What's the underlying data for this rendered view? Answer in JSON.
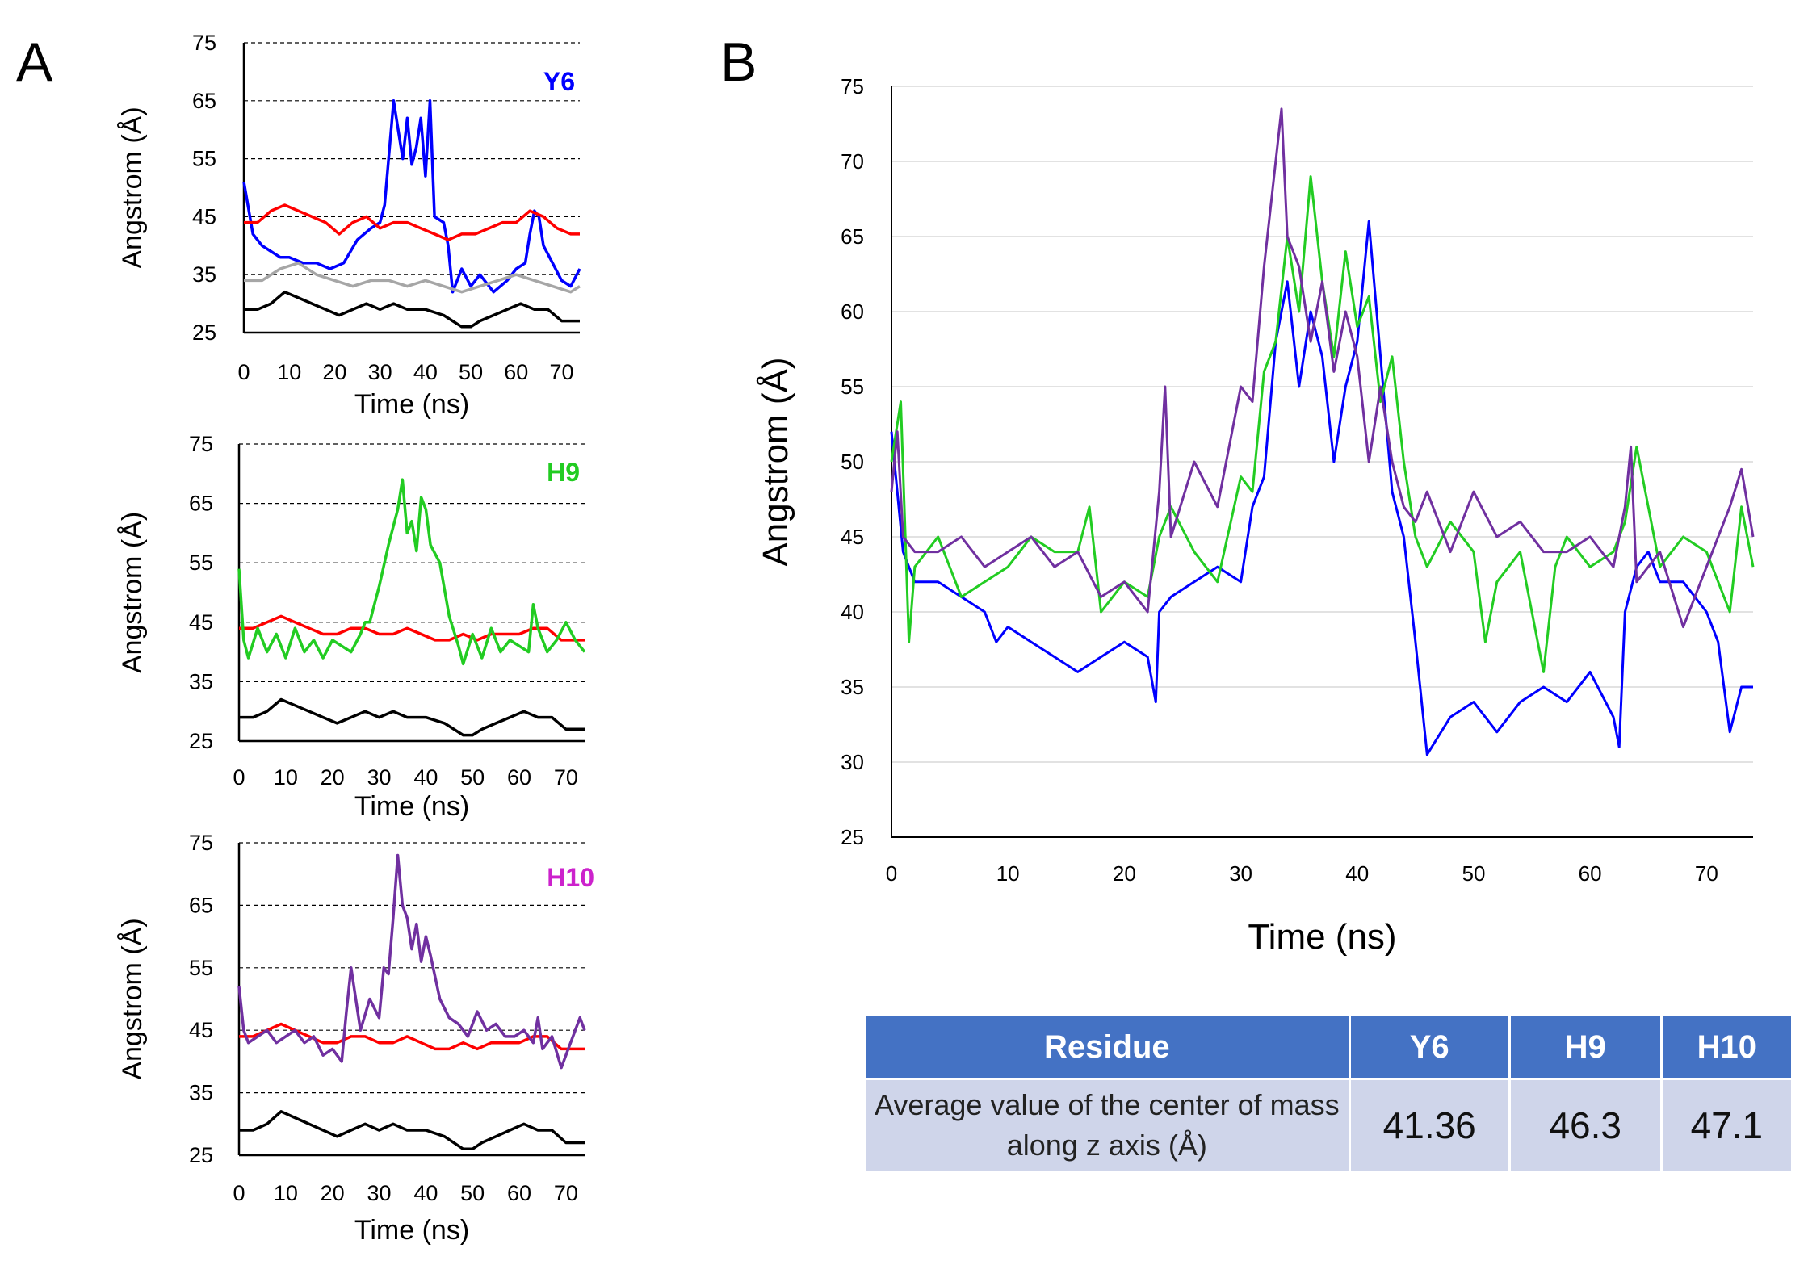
{
  "panels": {
    "a": "A",
    "b": "B"
  },
  "colors": {
    "Y6": "#0000ff",
    "H9": "#22cc22",
    "H10": "#7030a0",
    "red": "#ff0000",
    "grey": "#a6a6a6",
    "black": "#000000",
    "tag_H10": "#cc22cc",
    "header": "#4472c4",
    "cell": "#cfd5ea"
  },
  "chart_data": [
    {
      "id": "A1",
      "type": "line",
      "tag": "Y6",
      "xlabel": "Time (ns)",
      "ylabel": "Angstrom (Å)",
      "xlim": [
        0,
        74
      ],
      "ylim": [
        25,
        75
      ],
      "xticks": [
        0,
        10,
        20,
        30,
        40,
        50,
        60,
        70
      ],
      "yticks": [
        25,
        35,
        45,
        55,
        65,
        75
      ],
      "series": [
        {
          "name": "Y6",
          "color": "#0000ff",
          "x": [
            0,
            2,
            4,
            6,
            8,
            10,
            13,
            16,
            19,
            22,
            25,
            28,
            30,
            31,
            32,
            33,
            34,
            35,
            36,
            37,
            38,
            39,
            40,
            41,
            42,
            44,
            45,
            46,
            48,
            50,
            52,
            55,
            58,
            60,
            62,
            63,
            64,
            65,
            66,
            68,
            70,
            72,
            74
          ],
          "y": [
            51,
            42,
            40,
            39,
            38,
            38,
            37,
            37,
            36,
            37,
            41,
            43,
            44,
            47,
            56,
            65,
            60,
            55,
            62,
            54,
            57,
            62,
            52,
            65,
            45,
            44,
            40,
            32,
            36,
            33,
            35,
            32,
            34,
            36,
            37,
            42,
            46,
            45,
            40,
            37,
            34,
            33,
            36
          ]
        },
        {
          "name": "red",
          "color": "#ff0000",
          "x": [
            0,
            3,
            6,
            9,
            12,
            15,
            18,
            21,
            24,
            27,
            30,
            33,
            36,
            39,
            42,
            45,
            48,
            51,
            54,
            57,
            60,
            63,
            66,
            69,
            72,
            74
          ],
          "y": [
            44,
            44,
            46,
            47,
            46,
            45,
            44,
            42,
            44,
            45,
            43,
            44,
            44,
            43,
            42,
            41,
            42,
            42,
            43,
            44,
            44,
            46,
            45,
            43,
            42,
            42
          ]
        },
        {
          "name": "grey",
          "color": "#a6a6a6",
          "x": [
            0,
            4,
            8,
            12,
            16,
            20,
            24,
            28,
            32,
            36,
            40,
            44,
            48,
            52,
            56,
            60,
            64,
            68,
            72,
            74
          ],
          "y": [
            34,
            34,
            36,
            37,
            35,
            34,
            33,
            34,
            34,
            33,
            34,
            33,
            32,
            33,
            34,
            35,
            34,
            33,
            32,
            33
          ]
        },
        {
          "name": "black",
          "color": "#000000",
          "x": [
            0,
            3,
            6,
            9,
            12,
            15,
            18,
            21,
            24,
            27,
            30,
            33,
            36,
            40,
            44,
            48,
            50,
            52,
            55,
            58,
            61,
            64,
            67,
            70,
            72,
            74
          ],
          "y": [
            29,
            29,
            30,
            32,
            31,
            30,
            29,
            28,
            29,
            30,
            29,
            30,
            29,
            29,
            28,
            26,
            26,
            27,
            28,
            29,
            30,
            29,
            29,
            27,
            27,
            27
          ]
        }
      ]
    },
    {
      "id": "A2",
      "type": "line",
      "tag": "H9",
      "xlabel": "Time (ns)",
      "ylabel": "Angstrom (Å)",
      "xlim": [
        0,
        74
      ],
      "ylim": [
        25,
        75
      ],
      "xticks": [
        0,
        10,
        20,
        30,
        40,
        50,
        60,
        70
      ],
      "yticks": [
        25,
        35,
        45,
        55,
        65,
        75
      ],
      "series": [
        {
          "name": "red",
          "color": "#ff0000",
          "x": [
            0,
            3,
            6,
            9,
            12,
            15,
            18,
            21,
            24,
            27,
            30,
            33,
            36,
            39,
            42,
            45,
            48,
            51,
            54,
            57,
            60,
            63,
            66,
            69,
            72,
            74
          ],
          "y": [
            44,
            44,
            45,
            46,
            45,
            44,
            43,
            43,
            44,
            44,
            43,
            43,
            44,
            43,
            42,
            42,
            43,
            42,
            43,
            43,
            43,
            44,
            44,
            42,
            42,
            42
          ]
        },
        {
          "name": "H9",
          "color": "#22cc22",
          "x": [
            0,
            1,
            2,
            4,
            6,
            8,
            10,
            12,
            14,
            16,
            18,
            20,
            22,
            24,
            26,
            27,
            28,
            30,
            32,
            34,
            35,
            36,
            37,
            38,
            39,
            40,
            41,
            43,
            45,
            47,
            48,
            50,
            52,
            54,
            56,
            58,
            60,
            62,
            63,
            64,
            66,
            68,
            70,
            72,
            74
          ],
          "y": [
            54,
            42,
            39,
            44,
            40,
            43,
            39,
            44,
            40,
            42,
            39,
            42,
            41,
            40,
            43,
            45,
            45,
            51,
            58,
            64,
            69,
            60,
            62,
            57,
            66,
            64,
            58,
            55,
            46,
            41,
            38,
            43,
            39,
            44,
            40,
            42,
            41,
            40,
            48,
            44,
            40,
            42,
            45,
            42,
            40
          ]
        },
        {
          "name": "black",
          "color": "#000000",
          "x": [
            0,
            3,
            6,
            9,
            12,
            15,
            18,
            21,
            24,
            27,
            30,
            33,
            36,
            40,
            44,
            48,
            50,
            52,
            55,
            58,
            61,
            64,
            67,
            70,
            72,
            74
          ],
          "y": [
            29,
            29,
            30,
            32,
            31,
            30,
            29,
            28,
            29,
            30,
            29,
            30,
            29,
            29,
            28,
            26,
            26,
            27,
            28,
            29,
            30,
            29,
            29,
            27,
            27,
            27
          ]
        }
      ]
    },
    {
      "id": "A3",
      "type": "line",
      "tag": "H10",
      "xlabel": "Time (ns)",
      "ylabel": "Angstrom (Å)",
      "xlim": [
        0,
        74
      ],
      "ylim": [
        25,
        75
      ],
      "xticks": [
        0,
        10,
        20,
        30,
        40,
        50,
        60,
        70
      ],
      "yticks": [
        25,
        35,
        45,
        55,
        65,
        75
      ],
      "series": [
        {
          "name": "red",
          "color": "#ff0000",
          "x": [
            0,
            3,
            6,
            9,
            12,
            15,
            18,
            21,
            24,
            27,
            30,
            33,
            36,
            39,
            42,
            45,
            48,
            51,
            54,
            57,
            60,
            63,
            66,
            69,
            72,
            74
          ],
          "y": [
            44,
            44,
            45,
            46,
            45,
            44,
            43,
            43,
            44,
            44,
            43,
            43,
            44,
            43,
            42,
            42,
            43,
            42,
            43,
            43,
            43,
            44,
            44,
            42,
            42,
            42
          ]
        },
        {
          "name": "H10",
          "color": "#7030a0",
          "x": [
            0,
            1,
            2,
            4,
            6,
            8,
            10,
            12,
            14,
            16,
            18,
            20,
            22,
            23,
            24,
            26,
            28,
            30,
            31,
            32,
            33,
            34,
            35,
            36,
            37,
            38,
            39,
            40,
            41,
            43,
            45,
            47,
            49,
            51,
            53,
            55,
            57,
            59,
            61,
            63,
            64,
            65,
            67,
            69,
            71,
            73,
            74
          ],
          "y": [
            52,
            45,
            43,
            44,
            45,
            43,
            44,
            45,
            43,
            44,
            41,
            42,
            40,
            48,
            55,
            45,
            50,
            47,
            55,
            54,
            63,
            73,
            65,
            63,
            58,
            62,
            56,
            60,
            57,
            50,
            47,
            46,
            44,
            48,
            45,
            46,
            44,
            44,
            45,
            43,
            47,
            42,
            44,
            39,
            43,
            47,
            45
          ]
        },
        {
          "name": "black",
          "color": "#000000",
          "x": [
            0,
            3,
            6,
            9,
            12,
            15,
            18,
            21,
            24,
            27,
            30,
            33,
            36,
            40,
            44,
            48,
            50,
            52,
            55,
            58,
            61,
            64,
            67,
            70,
            72,
            74
          ],
          "y": [
            29,
            29,
            30,
            32,
            31,
            30,
            29,
            28,
            29,
            30,
            29,
            30,
            29,
            29,
            28,
            26,
            26,
            27,
            28,
            29,
            30,
            29,
            29,
            27,
            27,
            27
          ]
        }
      ]
    },
    {
      "id": "B",
      "type": "line",
      "xlabel": "Time (ns)",
      "ylabel": "Angstrom (Å)",
      "xlim": [
        0,
        74
      ],
      "ylim": [
        25,
        75
      ],
      "xticks": [
        0,
        10,
        20,
        30,
        40,
        50,
        60,
        70
      ],
      "yticks": [
        25,
        30,
        35,
        40,
        45,
        50,
        55,
        60,
        65,
        70,
        75
      ],
      "series": [
        {
          "name": "Y6",
          "color": "#0000ff",
          "x": [
            0,
            1,
            2,
            4,
            6,
            8,
            9,
            10,
            12,
            14,
            16,
            18,
            20,
            22,
            22.7,
            23,
            24,
            26,
            28,
            30,
            31,
            32,
            33,
            34,
            35,
            36,
            37,
            38,
            39,
            40,
            41,
            42,
            43,
            44,
            45,
            46,
            48,
            50,
            52,
            54,
            56,
            58,
            60,
            62,
            62.5,
            63,
            64,
            65,
            66,
            68,
            70,
            71,
            72,
            73,
            74
          ],
          "y": [
            52,
            44,
            42,
            42,
            41,
            40,
            38,
            39,
            38,
            37,
            36,
            37,
            38,
            37,
            34,
            40,
            41,
            42,
            43,
            42,
            47,
            49,
            58,
            62,
            55,
            60,
            57,
            50,
            55,
            58,
            66,
            57,
            48,
            45,
            38,
            30.5,
            33,
            34,
            32,
            34,
            35,
            34,
            36,
            33,
            31,
            40,
            43,
            44,
            42,
            42,
            40,
            38,
            32,
            35,
            35
          ]
        },
        {
          "name": "H9",
          "color": "#22cc22",
          "x": [
            0,
            0.8,
            1.5,
            2,
            4,
            6,
            8,
            10,
            12,
            14,
            16,
            17,
            18,
            20,
            22,
            23,
            24,
            26,
            28,
            30,
            31,
            32,
            33,
            34,
            35,
            36,
            37,
            38,
            39,
            40,
            41,
            42,
            43,
            44,
            45,
            46,
            48,
            50,
            51,
            52,
            54,
            56,
            57,
            58,
            60,
            62,
            63,
            64,
            66,
            68,
            70,
            72,
            73,
            74
          ],
          "y": [
            50,
            54,
            38,
            43,
            45,
            41,
            42,
            43,
            45,
            44,
            44,
            47,
            40,
            42,
            41,
            45,
            47,
            44,
            42,
            49,
            48,
            56,
            58,
            65,
            60,
            69,
            62,
            57,
            64,
            59,
            61,
            54,
            57,
            50,
            45,
            43,
            46,
            44,
            38,
            42,
            44,
            36,
            43,
            45,
            43,
            44,
            46,
            51,
            43,
            45,
            44,
            40,
            47,
            43
          ]
        },
        {
          "name": "H10",
          "color": "#7030a0",
          "x": [
            0,
            0.5,
            1,
            2,
            4,
            6,
            8,
            10,
            12,
            14,
            16,
            18,
            20,
            22,
            23,
            23.5,
            24,
            26,
            28,
            30,
            31,
            32,
            33,
            33.5,
            34,
            35,
            36,
            37,
            38,
            39,
            40,
            41,
            42,
            43,
            44,
            45,
            46,
            48,
            50,
            52,
            54,
            56,
            58,
            60,
            62,
            63,
            63.5,
            64,
            66,
            68,
            70,
            72,
            73,
            74
          ],
          "y": [
            48,
            52,
            45,
            44,
            44,
            45,
            43,
            44,
            45,
            43,
            44,
            41,
            42,
            40,
            48,
            55,
            45,
            50,
            47,
            55,
            54,
            63,
            70,
            73.5,
            65,
            63,
            58,
            62,
            56,
            60,
            57,
            50,
            55,
            50,
            47,
            46,
            48,
            44,
            48,
            45,
            46,
            44,
            44,
            45,
            43,
            47,
            51,
            42,
            44,
            39,
            43,
            47,
            49.5,
            45
          ]
        }
      ]
    }
  ],
  "table": {
    "headers": [
      "Residue",
      "Y6",
      "H9",
      "H10"
    ],
    "row": {
      "label": "Average value of the center of mass along z axis (Å)",
      "values": [
        "41.36",
        "46.3",
        "47.1"
      ]
    }
  }
}
